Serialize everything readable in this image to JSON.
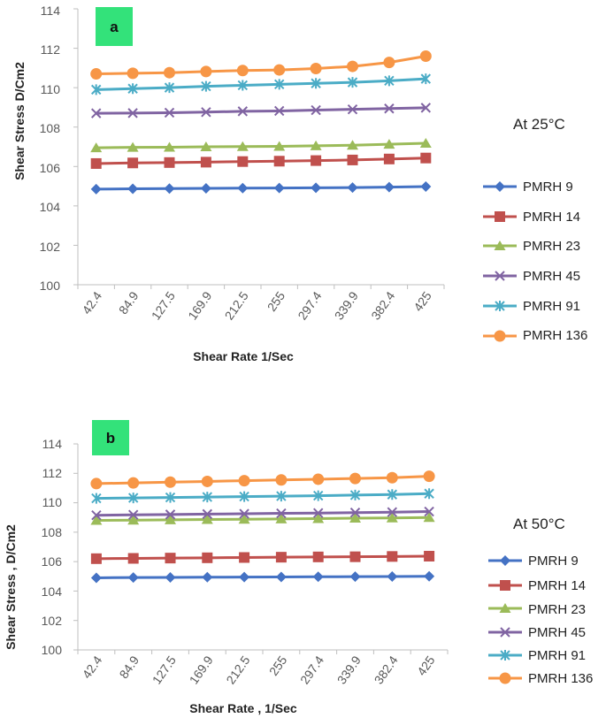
{
  "colors": {
    "PMRH 9": "#4472C4",
    "PMRH 14": "#C0504D",
    "PMRH 23": "#9BBB59",
    "PMRH 45": "#8064A2",
    "PMRH 91": "#4BACC6",
    "PMRH 136": "#F79646",
    "badge": "#33E27A",
    "axis": "#BFBFBF"
  },
  "chart_data": [
    {
      "panel_label": "a",
      "type": "line",
      "condition": "At 25°C",
      "xlabel": "Shear Rate 1/Sec",
      "ylabel": "Shear Stress D/Cm2",
      "categories": [
        "42.4",
        "84.9",
        "127.5",
        "169.9",
        "212.5",
        "255",
        "297.4",
        "339.9",
        "382.4",
        "425"
      ],
      "ylim": [
        100,
        114
      ],
      "yticks": [
        "100",
        "102",
        "104",
        "106",
        "108",
        "110",
        "112",
        "114"
      ],
      "series": [
        {
          "name": "PMRH 9",
          "marker": "diamond",
          "values": [
            104.85,
            104.87,
            104.88,
            104.89,
            104.9,
            104.91,
            104.92,
            104.93,
            104.95,
            104.98
          ]
        },
        {
          "name": "PMRH 14",
          "marker": "square",
          "values": [
            106.15,
            106.18,
            106.2,
            106.22,
            106.25,
            106.27,
            106.3,
            106.33,
            106.38,
            106.43
          ]
        },
        {
          "name": "PMRH 23",
          "marker": "triangle",
          "values": [
            106.95,
            106.97,
            106.98,
            107.0,
            107.01,
            107.02,
            107.05,
            107.08,
            107.13,
            107.18
          ]
        },
        {
          "name": "PMRH 45",
          "marker": "x",
          "values": [
            108.7,
            108.71,
            108.73,
            108.76,
            108.8,
            108.82,
            108.86,
            108.9,
            108.94,
            108.98
          ]
        },
        {
          "name": "PMRH 91",
          "marker": "star",
          "values": [
            109.9,
            109.95,
            110.0,
            110.07,
            110.12,
            110.17,
            110.22,
            110.27,
            110.35,
            110.45
          ]
        },
        {
          "name": "PMRH 136",
          "marker": "circle",
          "values": [
            110.7,
            110.73,
            110.76,
            110.82,
            110.87,
            110.9,
            110.97,
            111.08,
            111.28,
            111.6
          ]
        }
      ]
    },
    {
      "panel_label": "b",
      "type": "line",
      "condition": "At 50°C",
      "xlabel": "Shear Rate , 1/Sec",
      "ylabel": "Shear Stress , D/Cm2",
      "categories": [
        "42.4",
        "84.9",
        "127.5",
        "169.9",
        "212.5",
        "255",
        "297.4",
        "339.9",
        "382.4",
        "425"
      ],
      "ylim": [
        100,
        114
      ],
      "yticks": [
        "100",
        "102",
        "104",
        "106",
        "108",
        "110",
        "112",
        "114"
      ],
      "series": [
        {
          "name": "PMRH 9",
          "marker": "diamond",
          "values": [
            104.9,
            104.92,
            104.93,
            104.94,
            104.95,
            104.96,
            104.97,
            104.98,
            104.99,
            105.0
          ]
        },
        {
          "name": "PMRH 14",
          "marker": "square",
          "values": [
            106.2,
            106.22,
            106.24,
            106.26,
            106.28,
            106.3,
            106.32,
            106.33,
            106.35,
            106.37
          ]
        },
        {
          "name": "PMRH 23",
          "marker": "triangle",
          "values": [
            108.8,
            108.82,
            108.84,
            108.86,
            108.88,
            108.9,
            108.92,
            108.95,
            108.97,
            109.0
          ]
        },
        {
          "name": "PMRH 45",
          "marker": "x",
          "values": [
            109.15,
            109.18,
            109.2,
            109.23,
            109.25,
            109.28,
            109.3,
            109.33,
            109.36,
            109.4
          ]
        },
        {
          "name": "PMRH 91",
          "marker": "star",
          "values": [
            110.3,
            110.33,
            110.36,
            110.39,
            110.42,
            110.45,
            110.48,
            110.52,
            110.56,
            110.62
          ]
        },
        {
          "name": "PMRH 136",
          "marker": "circle",
          "values": [
            111.3,
            111.35,
            111.4,
            111.45,
            111.5,
            111.55,
            111.6,
            111.65,
            111.7,
            111.8
          ]
        }
      ]
    }
  ]
}
